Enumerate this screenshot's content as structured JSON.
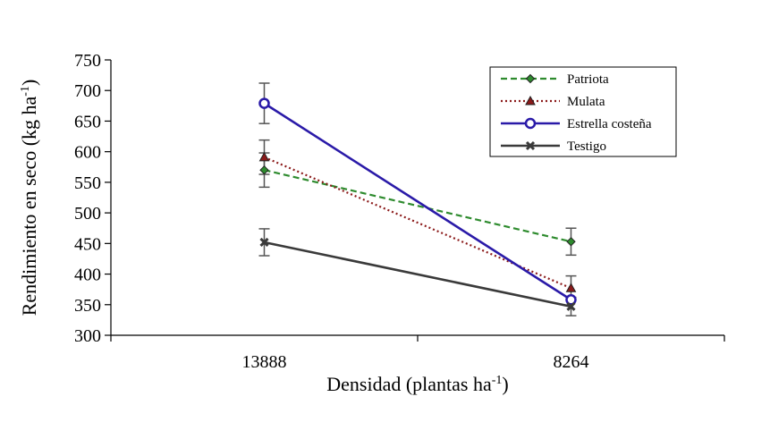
{
  "chart_data": {
    "type": "line",
    "title": "",
    "xlabel": "Densidad (plantas ha",
    "xlabel_sup": "-1",
    "xlabel_end": ")",
    "ylabel": "Rendimiento en seco (kg ha",
    "ylabel_sup": "-1",
    "ylabel_end": ")",
    "categories": [
      "13888",
      "8264"
    ],
    "ylim": [
      300,
      750
    ],
    "yticks": [
      300,
      350,
      400,
      450,
      500,
      550,
      600,
      650,
      700,
      750
    ],
    "grid": false,
    "legend_position": "top-right",
    "series": [
      {
        "name": "Patriota",
        "values": [
          570,
          453
        ],
        "error": [
          28,
          22
        ],
        "color": "#2e8b2e",
        "dash": "dashed",
        "marker": "diamond"
      },
      {
        "name": "Mulata",
        "values": [
          591,
          377
        ],
        "error": [
          28,
          20
        ],
        "color": "#8b1a1a",
        "dash": "dotted",
        "marker": "triangle"
      },
      {
        "name": "Estrella costeña",
        "values": [
          679,
          358
        ],
        "error": [
          33,
          0
        ],
        "color": "#2a1aa8",
        "dash": "solid",
        "marker": "circle"
      },
      {
        "name": "Testigo",
        "values": [
          452,
          347
        ],
        "error": [
          22,
          15
        ],
        "color": "#3a3a3a",
        "dash": "solid",
        "marker": "x"
      }
    ]
  }
}
